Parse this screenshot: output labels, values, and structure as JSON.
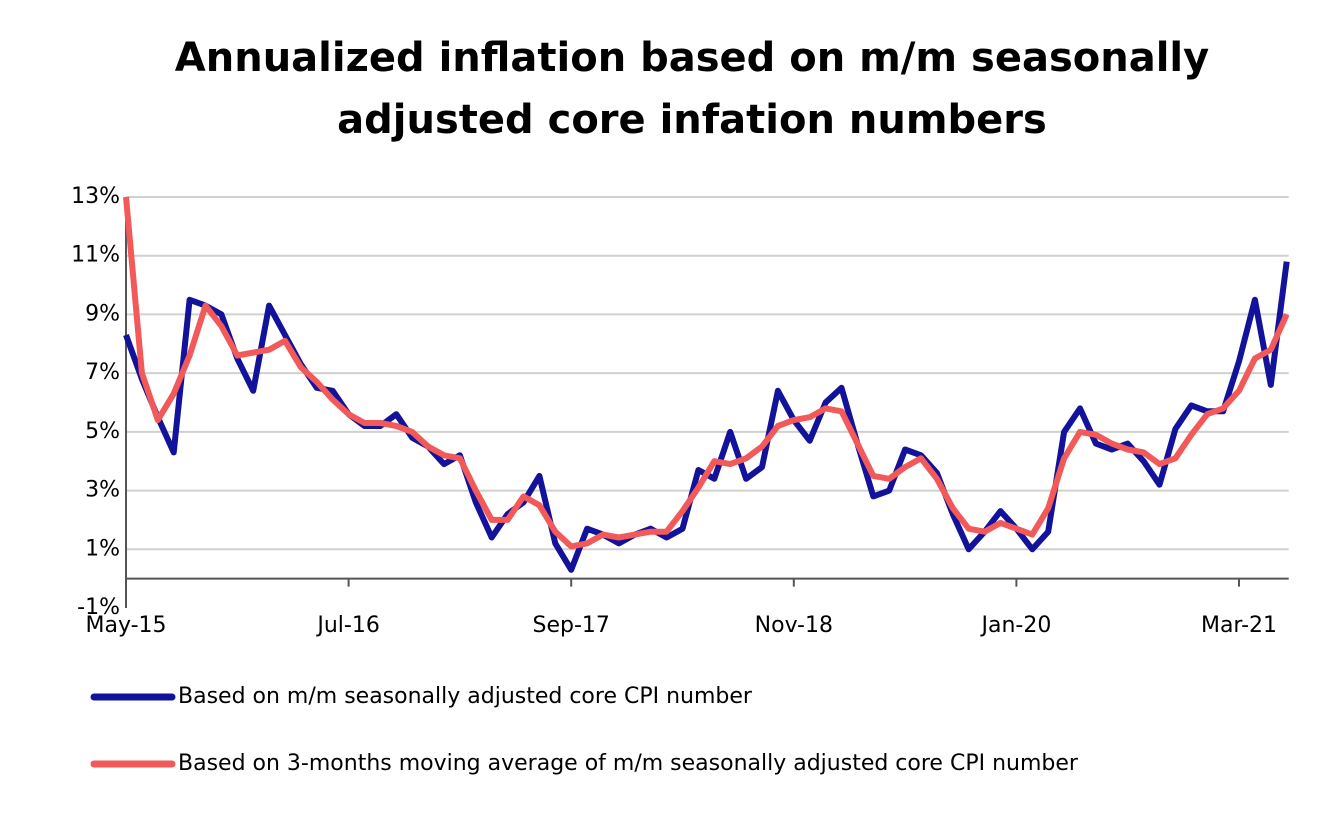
{
  "chart_data": {
    "type": "line",
    "title": [
      "Annualized inflation based on m/m seasonally",
      "adjusted core infation numbers"
    ],
    "categories": [
      "May-15",
      null,
      null,
      null,
      null,
      null,
      null,
      null,
      null,
      null,
      null,
      null,
      null,
      null,
      "Jul-16",
      null,
      null,
      null,
      null,
      null,
      null,
      null,
      null,
      null,
      null,
      null,
      null,
      null,
      "Sep-17",
      null,
      null,
      null,
      null,
      null,
      null,
      null,
      null,
      null,
      null,
      null,
      null,
      null,
      "Nov-18",
      null,
      null,
      null,
      null,
      null,
      null,
      null,
      null,
      null,
      null,
      null,
      null,
      null,
      "Jan-20",
      null,
      null,
      null,
      null,
      null,
      null,
      null,
      null,
      null,
      null,
      null,
      null,
      null,
      "Mar-21",
      null,
      null,
      null
    ],
    "series": [
      {
        "name": "Based on m/m seasonally adjusted core CPI number",
        "color": "#12129a",
        "values": [
          8.3,
          6.8,
          5.5,
          4.3,
          9.5,
          9.3,
          9.0,
          7.5,
          6.4,
          9.3,
          8.3,
          7.3,
          6.5,
          6.4,
          5.6,
          5.2,
          5.2,
          5.6,
          4.8,
          4.5,
          3.9,
          4.2,
          2.6,
          1.4,
          2.2,
          2.6,
          3.5,
          1.2,
          0.3,
          1.7,
          1.5,
          1.2,
          1.5,
          1.7,
          1.4,
          1.7,
          3.7,
          3.4,
          5.0,
          3.4,
          3.8,
          6.4,
          5.4,
          4.7,
          6.0,
          6.5,
          4.6,
          2.8,
          3.0,
          4.4,
          4.2,
          3.6,
          2.2,
          1.0,
          1.6,
          2.3,
          1.7,
          1.0,
          1.6,
          5.0,
          5.8,
          4.6,
          4.4,
          4.6,
          4.0,
          3.2,
          5.1,
          5.9,
          5.7,
          5.7,
          7.4,
          9.5,
          6.6,
          10.8
        ]
      },
      {
        "name": "Based on 3-months moving average of m/m seasonally adjusted core CPI number",
        "color": "#f25a5a",
        "values": [
          13.0,
          7.0,
          5.4,
          6.3,
          7.6,
          9.3,
          8.6,
          7.6,
          7.7,
          7.8,
          8.1,
          7.2,
          6.7,
          6.1,
          5.6,
          5.3,
          5.3,
          5.2,
          5.0,
          4.5,
          4.2,
          4.1,
          3.0,
          2.0,
          2.0,
          2.8,
          2.5,
          1.6,
          1.1,
          1.2,
          1.5,
          1.4,
          1.5,
          1.6,
          1.6,
          2.3,
          3.1,
          4.0,
          3.9,
          4.1,
          4.5,
          5.2,
          5.4,
          5.5,
          5.8,
          5.7,
          4.6,
          3.5,
          3.4,
          3.8,
          4.1,
          3.4,
          2.4,
          1.7,
          1.6,
          1.9,
          1.7,
          1.5,
          2.4,
          4.1,
          5.0,
          4.9,
          4.6,
          4.4,
          4.3,
          3.9,
          4.1,
          4.9,
          5.6,
          5.8,
          6.4,
          7.5,
          7.8,
          9.0
        ]
      }
    ],
    "ylim": [
      -1,
      13
    ],
    "yticks": [
      {
        "value": -1,
        "label": "-1%"
      },
      {
        "value": 1,
        "label": "1%"
      },
      {
        "value": 3,
        "label": "3%"
      },
      {
        "value": 5,
        "label": "5%"
      },
      {
        "value": 7,
        "label": "7%"
      },
      {
        "value": 9,
        "label": "9%"
      },
      {
        "value": 11,
        "label": "11%"
      },
      {
        "value": 13,
        "label": "13%"
      }
    ],
    "grid": true
  }
}
